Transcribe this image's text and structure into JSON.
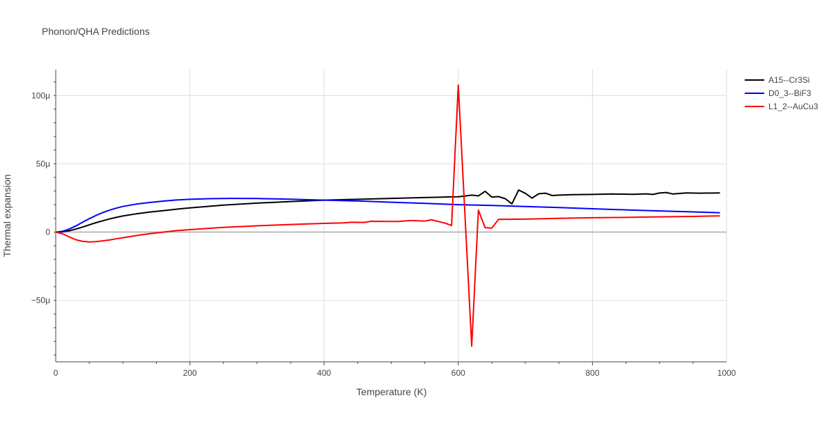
{
  "chart_data": {
    "type": "line",
    "title": "Phonon/QHA Predictions",
    "xlabel": "Temperature (K)",
    "ylabel": "Thermal expansion",
    "xlim": [
      0,
      1000
    ],
    "ylim": [
      -9.5e-05,
      0.000119
    ],
    "x_ticks": [
      0,
      200,
      400,
      600,
      800,
      1000
    ],
    "x_tick_labels": [
      "0",
      "200",
      "400",
      "600",
      "800",
      "1000"
    ],
    "y_ticks": [
      -5e-05,
      0,
      5e-05,
      0.0001
    ],
    "y_tick_labels": [
      "−50μ",
      "0",
      "50μ",
      "100μ"
    ],
    "grid": true,
    "legend_position": "top-right",
    "series": [
      {
        "name": "A15--Cr3Si",
        "color": "#000000",
        "points": [
          [
            0,
            0
          ],
          [
            10,
            3e-07
          ],
          [
            20,
            1e-06
          ],
          [
            30,
            2.2e-06
          ],
          [
            40,
            3.7e-06
          ],
          [
            50,
            5.3e-06
          ],
          [
            60,
            6.9e-06
          ],
          [
            70,
            8.3e-06
          ],
          [
            80,
            9.6e-06
          ],
          [
            90,
            1.08e-05
          ],
          [
            100,
            1.18e-05
          ],
          [
            120,
            1.34e-05
          ],
          [
            140,
            1.47e-05
          ],
          [
            160,
            1.57e-05
          ],
          [
            180,
            1.68e-05
          ],
          [
            200,
            1.77e-05
          ],
          [
            250,
            1.98e-05
          ],
          [
            300,
            2.12e-05
          ],
          [
            350,
            2.24e-05
          ],
          [
            400,
            2.34e-05
          ],
          [
            450,
            2.4e-05
          ],
          [
            500,
            2.47e-05
          ],
          [
            550,
            2.53e-05
          ],
          [
            590,
            2.58e-05
          ],
          [
            600,
            2.59e-05
          ],
          [
            610,
            2.64e-05
          ],
          [
            620,
            2.71e-05
          ],
          [
            630,
            2.65e-05
          ],
          [
            640,
            2.99e-05
          ],
          [
            650,
            2.56e-05
          ],
          [
            660,
            2.6e-05
          ],
          [
            670,
            2.45e-05
          ],
          [
            680,
            2.07e-05
          ],
          [
            690,
            3.08e-05
          ],
          [
            700,
            2.84e-05
          ],
          [
            710,
            2.49e-05
          ],
          [
            720,
            2.81e-05
          ],
          [
            730,
            2.85e-05
          ],
          [
            740,
            2.68e-05
          ],
          [
            750,
            2.71e-05
          ],
          [
            770,
            2.74e-05
          ],
          [
            800,
            2.76e-05
          ],
          [
            830,
            2.79e-05
          ],
          [
            860,
            2.77e-05
          ],
          [
            880,
            2.8e-05
          ],
          [
            890,
            2.76e-05
          ],
          [
            900,
            2.86e-05
          ],
          [
            910,
            2.9e-05
          ],
          [
            920,
            2.79e-05
          ],
          [
            930,
            2.83e-05
          ],
          [
            940,
            2.87e-05
          ],
          [
            960,
            2.85e-05
          ],
          [
            990,
            2.87e-05
          ]
        ]
      },
      {
        "name": "D0_3--BiF3",
        "color": "#0000ff",
        "points": [
          [
            0,
            0
          ],
          [
            10,
            6e-07
          ],
          [
            20,
            2.2e-06
          ],
          [
            30,
            4.5e-06
          ],
          [
            40,
            7.2e-06
          ],
          [
            50,
            9.8e-06
          ],
          [
            60,
            1.22e-05
          ],
          [
            70,
            1.43e-05
          ],
          [
            80,
            1.6e-05
          ],
          [
            90,
            1.75e-05
          ],
          [
            100,
            1.88e-05
          ],
          [
            120,
            2.05e-05
          ],
          [
            140,
            2.17e-05
          ],
          [
            160,
            2.27e-05
          ],
          [
            180,
            2.35e-05
          ],
          [
            200,
            2.4e-05
          ],
          [
            230,
            2.45e-05
          ],
          [
            260,
            2.47e-05
          ],
          [
            300,
            2.46e-05
          ],
          [
            350,
            2.41e-05
          ],
          [
            400,
            2.34e-05
          ],
          [
            450,
            2.28e-05
          ],
          [
            500,
            2.19e-05
          ],
          [
            550,
            2.1e-05
          ],
          [
            600,
            2.01e-05
          ],
          [
            650,
            1.95e-05
          ],
          [
            700,
            1.88e-05
          ],
          [
            750,
            1.8e-05
          ],
          [
            800,
            1.71e-05
          ],
          [
            850,
            1.63e-05
          ],
          [
            900,
            1.55e-05
          ],
          [
            950,
            1.48e-05
          ],
          [
            990,
            1.42e-05
          ]
        ]
      },
      {
        "name": "L1_2--AuCu3",
        "color": "#ff0000",
        "points": [
          [
            0,
            0
          ],
          [
            10,
            -1.2e-06
          ],
          [
            20,
            -3.5e-06
          ],
          [
            30,
            -5.6e-06
          ],
          [
            40,
            -6.8e-06
          ],
          [
            50,
            -7.2e-06
          ],
          [
            60,
            -7e-06
          ],
          [
            70,
            -6.4e-06
          ],
          [
            80,
            -5.8e-06
          ],
          [
            90,
            -4.9e-06
          ],
          [
            100,
            -4.1e-06
          ],
          [
            120,
            -2.5e-06
          ],
          [
            140,
            -1.2e-06
          ],
          [
            160,
            0
          ],
          [
            180,
            1.1e-06
          ],
          [
            200,
            1.8e-06
          ],
          [
            250,
            3.5e-06
          ],
          [
            300,
            4.6e-06
          ],
          [
            350,
            5.6e-06
          ],
          [
            400,
            6.4e-06
          ],
          [
            430,
            6.8e-06
          ],
          [
            440,
            7.2e-06
          ],
          [
            460,
            7.1e-06
          ],
          [
            470,
            7.9e-06
          ],
          [
            500,
            7.8e-06
          ],
          [
            510,
            7.8e-06
          ],
          [
            530,
            8.5e-06
          ],
          [
            550,
            8.1e-06
          ],
          [
            560,
            9e-06
          ],
          [
            570,
            7.8e-06
          ],
          [
            580,
            6.6e-06
          ],
          [
            590,
            4.8e-06
          ],
          [
            600,
            0.0001077
          ],
          [
            620,
            -8.35e-05
          ],
          [
            630,
            1.61e-05
          ],
          [
            640,
            3.3e-06
          ],
          [
            650,
            3e-06
          ],
          [
            660,
            9.3e-06
          ],
          [
            700,
            9.5e-06
          ],
          [
            750,
            1.01e-05
          ],
          [
            800,
            1.05e-05
          ],
          [
            850,
            1.08e-05
          ],
          [
            900,
            1.12e-05
          ],
          [
            950,
            1.15e-05
          ],
          [
            990,
            1.19e-05
          ]
        ]
      }
    ]
  }
}
